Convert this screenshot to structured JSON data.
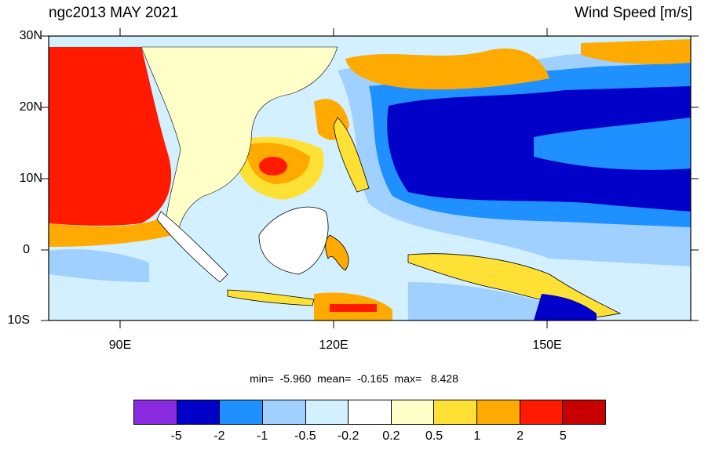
{
  "title_left": "ngc2013 MAY 2021",
  "title_right": "Wind Speed [m/s]",
  "lat_labels": [
    "30N",
    "20N",
    "10N",
    "0",
    "10S"
  ],
  "lon_labels": [
    "90E",
    "120E",
    "150E"
  ],
  "stats": "min=  -5.960  mean=  -0.165  max=   8.428",
  "colorbar": {
    "colors": [
      "#8a2be2",
      "#0000c8",
      "#1e90ff",
      "#a0d0ff",
      "#d2f0ff",
      "#ffffff",
      "#ffffc8",
      "#ffe135",
      "#ffaa00",
      "#ff1a00",
      "#c80000"
    ],
    "labels": [
      "-5",
      "-2",
      "-1",
      "-0.5",
      "-0.2",
      "0.2",
      "0.5",
      "1",
      "2",
      "5"
    ]
  }
}
